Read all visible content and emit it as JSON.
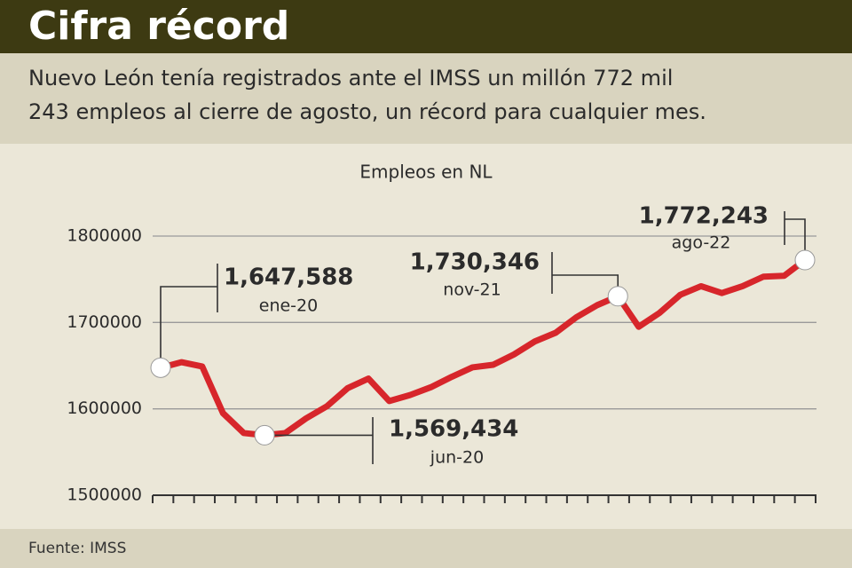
{
  "chart_data": {
    "type": "line",
    "title": "Cifra récord",
    "subtitle_lines": [
      "Nuevo León tenía registrados ante el IMSS un millón 772 mil",
      "243 empleos al cierre de agosto, un récord para cualquier mes."
    ],
    "chart_title": "Empleos en NL",
    "source": "Fuente: IMSS",
    "categories": [
      "ene-20",
      null,
      null,
      null,
      null,
      "jun-20",
      null,
      null,
      null,
      null,
      null,
      null,
      null,
      null,
      null,
      null,
      null,
      null,
      null,
      null,
      null,
      null,
      "nov-21",
      null,
      null,
      null,
      null,
      null,
      null,
      null,
      null,
      "ago-22"
    ],
    "values": [
      1647588,
      1654000,
      1649000,
      1595000,
      1572000,
      1569434,
      1572000,
      1589000,
      1603000,
      1624000,
      1635000,
      1609000,
      1616000,
      1625000,
      1637000,
      1648000,
      1651000,
      1663000,
      1678000,
      1688000,
      1706000,
      1720000,
      1730346,
      1695000,
      1711000,
      1732000,
      1742000,
      1734000,
      1742000,
      1753000,
      1754000,
      1772243
    ],
    "value_labels": [
      "1,647,588",
      null,
      null,
      null,
      null,
      "1,569,434",
      null,
      null,
      null,
      null,
      null,
      null,
      null,
      null,
      null,
      null,
      null,
      null,
      null,
      null,
      null,
      null,
      "1,730,346",
      null,
      null,
      null,
      null,
      null,
      null,
      null,
      null,
      "1,772,243"
    ],
    "color": "#d7262b",
    "ylim": [
      1500000,
      1800000
    ],
    "yticks": [
      1500000,
      1600000,
      1700000,
      1800000
    ],
    "grid": true
  }
}
